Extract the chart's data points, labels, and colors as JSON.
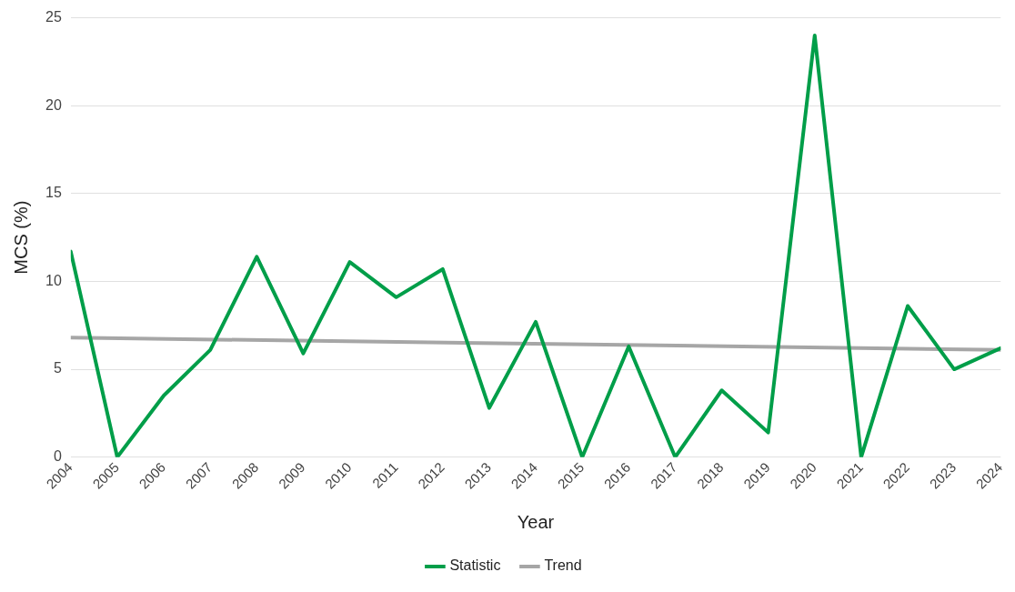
{
  "chart_data": {
    "type": "line",
    "xlabel": "Year",
    "ylabel": "MCS (%)",
    "x": [
      2004,
      2005,
      2006,
      2007,
      2008,
      2009,
      2010,
      2011,
      2012,
      2013,
      2014,
      2015,
      2016,
      2017,
      2018,
      2019,
      2020,
      2021,
      2022,
      2023,
      2024
    ],
    "xlim": [
      2004,
      2024
    ],
    "xticks": [
      2004,
      2005,
      2006,
      2007,
      2008,
      2009,
      2010,
      2011,
      2012,
      2013,
      2014,
      2015,
      2016,
      2017,
      2018,
      2019,
      2020,
      2021,
      2022,
      2023,
      2024
    ],
    "ylim": [
      0,
      25
    ],
    "yticks": [
      0,
      5,
      10,
      15,
      20,
      25
    ],
    "series": [
      {
        "name": "Statistic",
        "color": "#009e49",
        "values": [
          11.7,
          0,
          3.5,
          6.1,
          11.4,
          5.9,
          11.1,
          9.1,
          10.7,
          2.8,
          7.7,
          0,
          6.3,
          0,
          3.8,
          1.4,
          24.0,
          0,
          8.6,
          5.0,
          6.2
        ]
      },
      {
        "name": "Trend",
        "type": "line",
        "color": "#a6a6a6",
        "x": [
          2004,
          2024
        ],
        "values": [
          6.8,
          6.1
        ]
      }
    ],
    "grid": "y",
    "legend": "bottom",
    "marker": "none",
    "line_style": "solid"
  }
}
